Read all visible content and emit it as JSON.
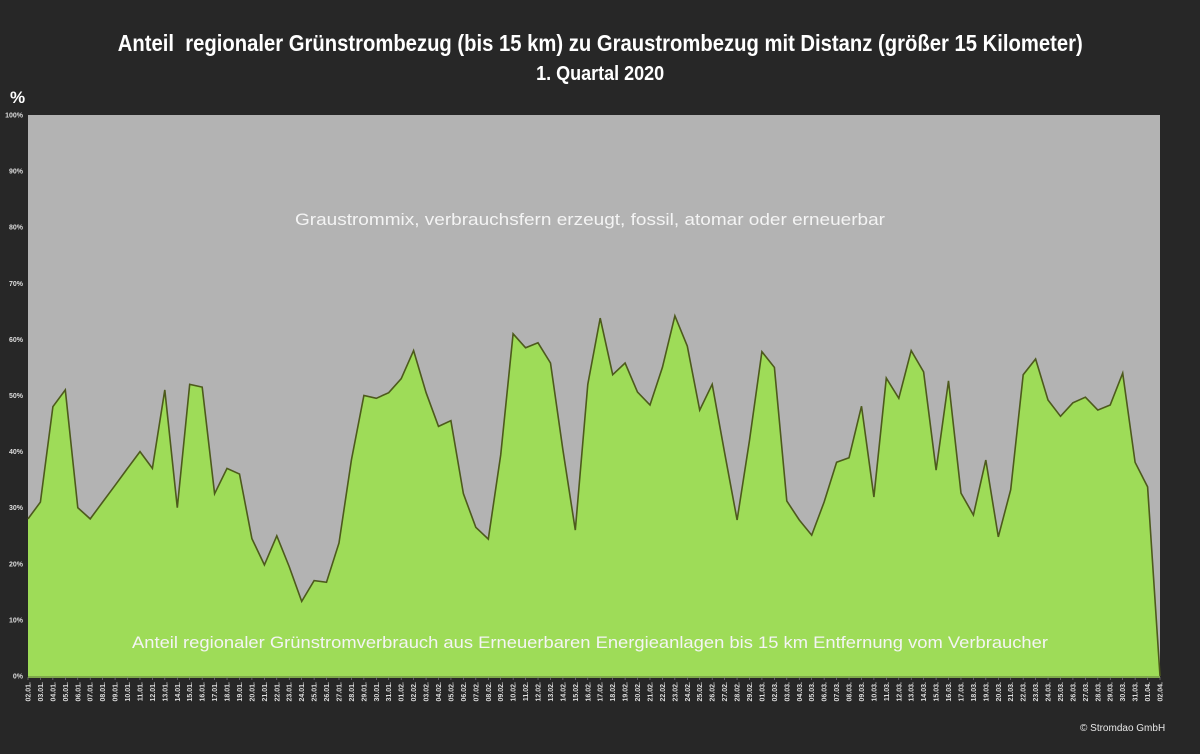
{
  "chart_data": {
    "type": "area",
    "title": "Anteil  regionaler Grünstrombezug (bis 15 km) zu Graustrombezug mit Distanz (größer 15 Kilometer)",
    "subtitle": "1. Quartal 2020",
    "ylabel": "%",
    "ylim": [
      0,
      100
    ],
    "yticks": [
      "0%",
      "10%",
      "20%",
      "30%",
      "40%",
      "50%",
      "60%",
      "70%",
      "80%",
      "90%",
      "100%"
    ],
    "grid": false,
    "x": [
      "02.01.",
      "03.01.",
      "04.01.",
      "05.01.",
      "06.01.",
      "07.01.",
      "08.01.",
      "09.01.",
      "10.01.",
      "11.01.",
      "12.01.",
      "13.01.",
      "14.01.",
      "15.01.",
      "16.01.",
      "17.01.",
      "18.01.",
      "19.01.",
      "20.01.",
      "21.01.",
      "22.01.",
      "23.01.",
      "24.01.",
      "25.01.",
      "26.01.",
      "27.01.",
      "28.01.",
      "29.01.",
      "30.01.",
      "31.01.",
      "01.02.",
      "02.02.",
      "03.02.",
      "04.02.",
      "05.02.",
      "06.02.",
      "07.02.",
      "08.02.",
      "09.02.",
      "10.02.",
      "11.02.",
      "12.02.",
      "13.02.",
      "14.02.",
      "15.02.",
      "16.02.",
      "17.02.",
      "18.02.",
      "19.02.",
      "20.02.",
      "21.02.",
      "22.02.",
      "23.02.",
      "24.02.",
      "25.02.",
      "26.02.",
      "27.02.",
      "28.02.",
      "29.02.",
      "01.03.",
      "02.03.",
      "03.03.",
      "04.03.",
      "05.03.",
      "06.03.",
      "07.03.",
      "08.03.",
      "09.03.",
      "10.03.",
      "11.03.",
      "12.03.",
      "13.03.",
      "14.03.",
      "15.03.",
      "16.03.",
      "17.03.",
      "18.03.",
      "19.03.",
      "20.03.",
      "21.03.",
      "22.03.",
      "23.03.",
      "24.03.",
      "25.03.",
      "26.03.",
      "27.03.",
      "28.03.",
      "29.03.",
      "30.03.",
      "31.03.",
      "01.04.",
      "02.04."
    ],
    "series": [
      {
        "name": "Anteil regionaler Grünstromverbrauch aus Erneuerbaren Energieanlagen bis 15 km Entfernung vom Verbraucher",
        "color": "#9edc58",
        "values": [
          28,
          31,
          48,
          51,
          30,
          28,
          31,
          34,
          37,
          40,
          37,
          51,
          30,
          52,
          51.5,
          32.5,
          37,
          36,
          24.5,
          19.8,
          25,
          19.5,
          13.3,
          17,
          16.7,
          23.7,
          38.5,
          50,
          49.5,
          50.5,
          53,
          58,
          50.5,
          44.5,
          45.5,
          32.5,
          26.5,
          24.4,
          39.4,
          61,
          58.5,
          59.4,
          55.8,
          40.3,
          26,
          52,
          63.8,
          53.7,
          55.8,
          50.6,
          48.3,
          55,
          64.2,
          58.8,
          47.4,
          52,
          39.8,
          27.8,
          42,
          57.8,
          55,
          31.2,
          27.8,
          25.1,
          31,
          38.1,
          38.9,
          48.1,
          31.9,
          53.1,
          49.5,
          58,
          54.2,
          36.7,
          52.6,
          32.6,
          28.7,
          38.5,
          24.8,
          33.2,
          53.7,
          56.5,
          49.2,
          46.3,
          48.7,
          49.7,
          47.4,
          48.3,
          54,
          38.1,
          33.7,
          0
        ]
      },
      {
        "name": "Graustrommix, verbrauchsfern erzeugt, fossil, atomar oder erneuerbar",
        "color": "#b3b3b3"
      }
    ]
  },
  "footer": {
    "copyright": "© Stromdao GmbH"
  }
}
